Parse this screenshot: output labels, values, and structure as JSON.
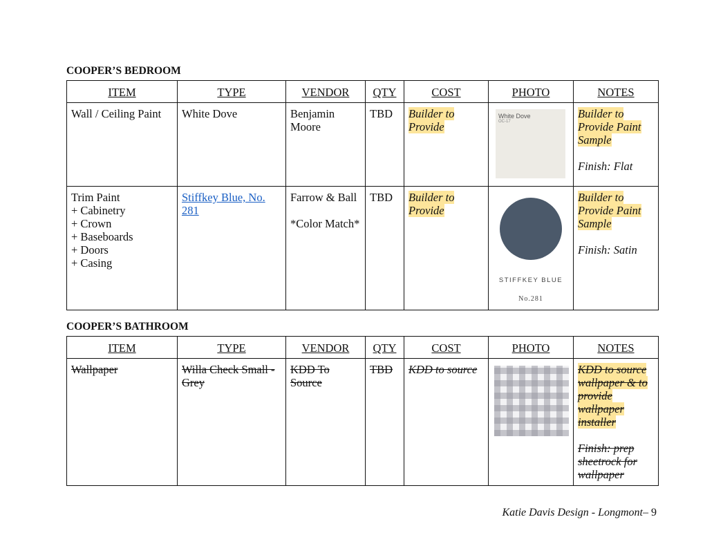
{
  "columns": [
    "ITEM",
    "TYPE",
    "VENDOR",
    "QTY",
    "COST",
    "PHOTO",
    "NOTES"
  ],
  "bedroom": {
    "title": "COOPER’S BEDROOM",
    "rows": [
      {
        "item": [
          "Wall / Ceiling Paint"
        ],
        "type": "White Dove",
        "vendor": [
          "Benjamin Moore"
        ],
        "qty": "TBD",
        "cost": "Builder to Provide",
        "photo": {
          "name": "White Dove",
          "code": "OC-17",
          "color": "#edebe5"
        },
        "notes": "Builder to Provide Paint Sample",
        "finish": "Finish: Flat"
      },
      {
        "item": [
          "Trim Paint",
          "+ Cabinetry",
          "+ Crown",
          "+ Baseboards",
          "+ Doors",
          "+ Casing"
        ],
        "type": "Stiffkey Blue, No. 281",
        "vendor": [
          "Farrow & Ball",
          "*Color Match*"
        ],
        "qty": "TBD",
        "cost": "Builder to Provide",
        "photo": {
          "name": "STIFFKEY BLUE",
          "code": "No.281",
          "color": "#4b596a"
        },
        "notes": "Builder to Provide Paint Sample",
        "finish": "Finish: Satin"
      }
    ]
  },
  "bathroom": {
    "title": "COOPER’S BATHROOM",
    "rows": [
      {
        "item": "Wallpaper",
        "type": "Willa Check Small - Grey",
        "vendor": "KDD To Source",
        "qty": "TBD",
        "cost": "KDD to source",
        "photo": {
          "pattern": "grey gingham check"
        },
        "notes": "KDD to source wallpaper & to provide wallpaper installer",
        "finish": "Finish: prep sheetrock for wallpaper"
      }
    ]
  },
  "footer": {
    "text": "Katie Davis Design - Longmont–",
    "page": "9"
  },
  "colors": {
    "highlight": "#fde59b",
    "link": "#1a5fc4"
  }
}
